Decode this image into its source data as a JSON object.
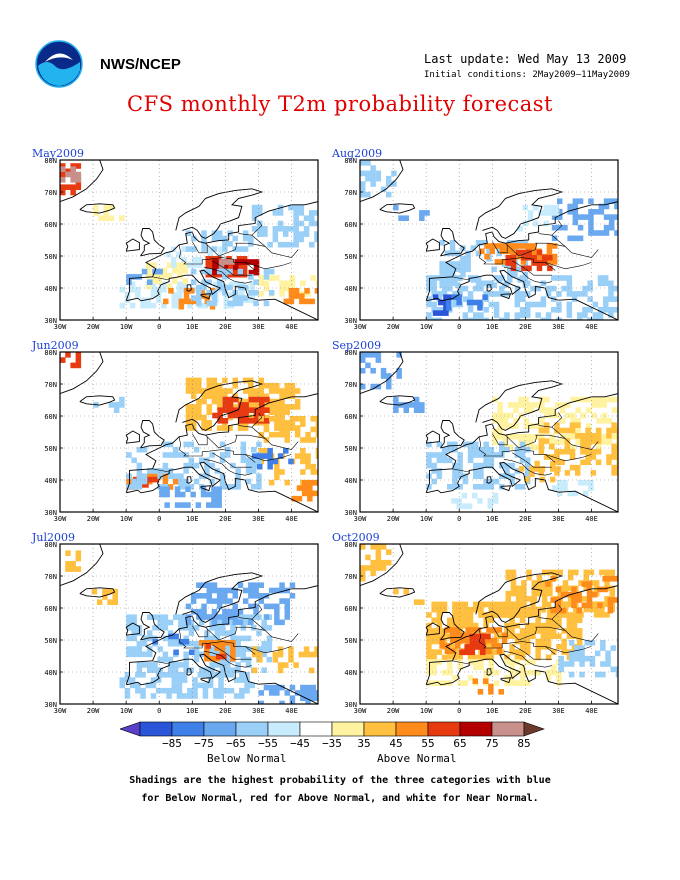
{
  "header": {
    "org": "NWS/NCEP",
    "last_update": "Last update: Wed May 13 2009",
    "initial_conditions": "Initial conditions: 2May2009–11May2009",
    "title": "CFS monthly T2m probability forecast"
  },
  "map": {
    "lat_labels": [
      "80N",
      "70N",
      "60N",
      "50N",
      "40N",
      "30N"
    ],
    "lon_labels": [
      "30W",
      "20W",
      "10W",
      "0",
      "10E",
      "20E",
      "30E",
      "40E"
    ]
  },
  "panels": [
    {
      "label": "May2009",
      "dominant": "mixed",
      "hot": "central-europe"
    },
    {
      "label": "Aug2009",
      "dominant": "mixed",
      "hot": "balkans"
    },
    {
      "label": "Jun2009",
      "dominant": "above",
      "hot": "scandinavia"
    },
    {
      "label": "Sep2009",
      "dominant": "above-light",
      "hot": "east"
    },
    {
      "label": "Jul2009",
      "dominant": "below",
      "hot": "italy"
    },
    {
      "label": "Oct2009",
      "dominant": "above",
      "hot": "west-central"
    }
  ],
  "legend": {
    "ticks": [
      "−85",
      "−75",
      "−65",
      "−55",
      "−45",
      "−35",
      "35",
      "45",
      "55",
      "65",
      "75",
      "85"
    ],
    "below_label": "Below Normal",
    "above_label": "Above Normal",
    "colors": [
      "#5a3fc8",
      "#2a55d8",
      "#3f7fe8",
      "#6aa8f0",
      "#9ad0f8",
      "#c8ecfc",
      "#ffffff",
      "#fff2a0",
      "#ffc040",
      "#ff8c1a",
      "#e83a10",
      "#b40000",
      "#c8908a",
      "#6b3a2a"
    ]
  },
  "notes": {
    "line1": "Shadings are the highest probability of the three categories with blue",
    "line2": "for Below Normal, red for Above Normal, and white for Near Normal."
  }
}
